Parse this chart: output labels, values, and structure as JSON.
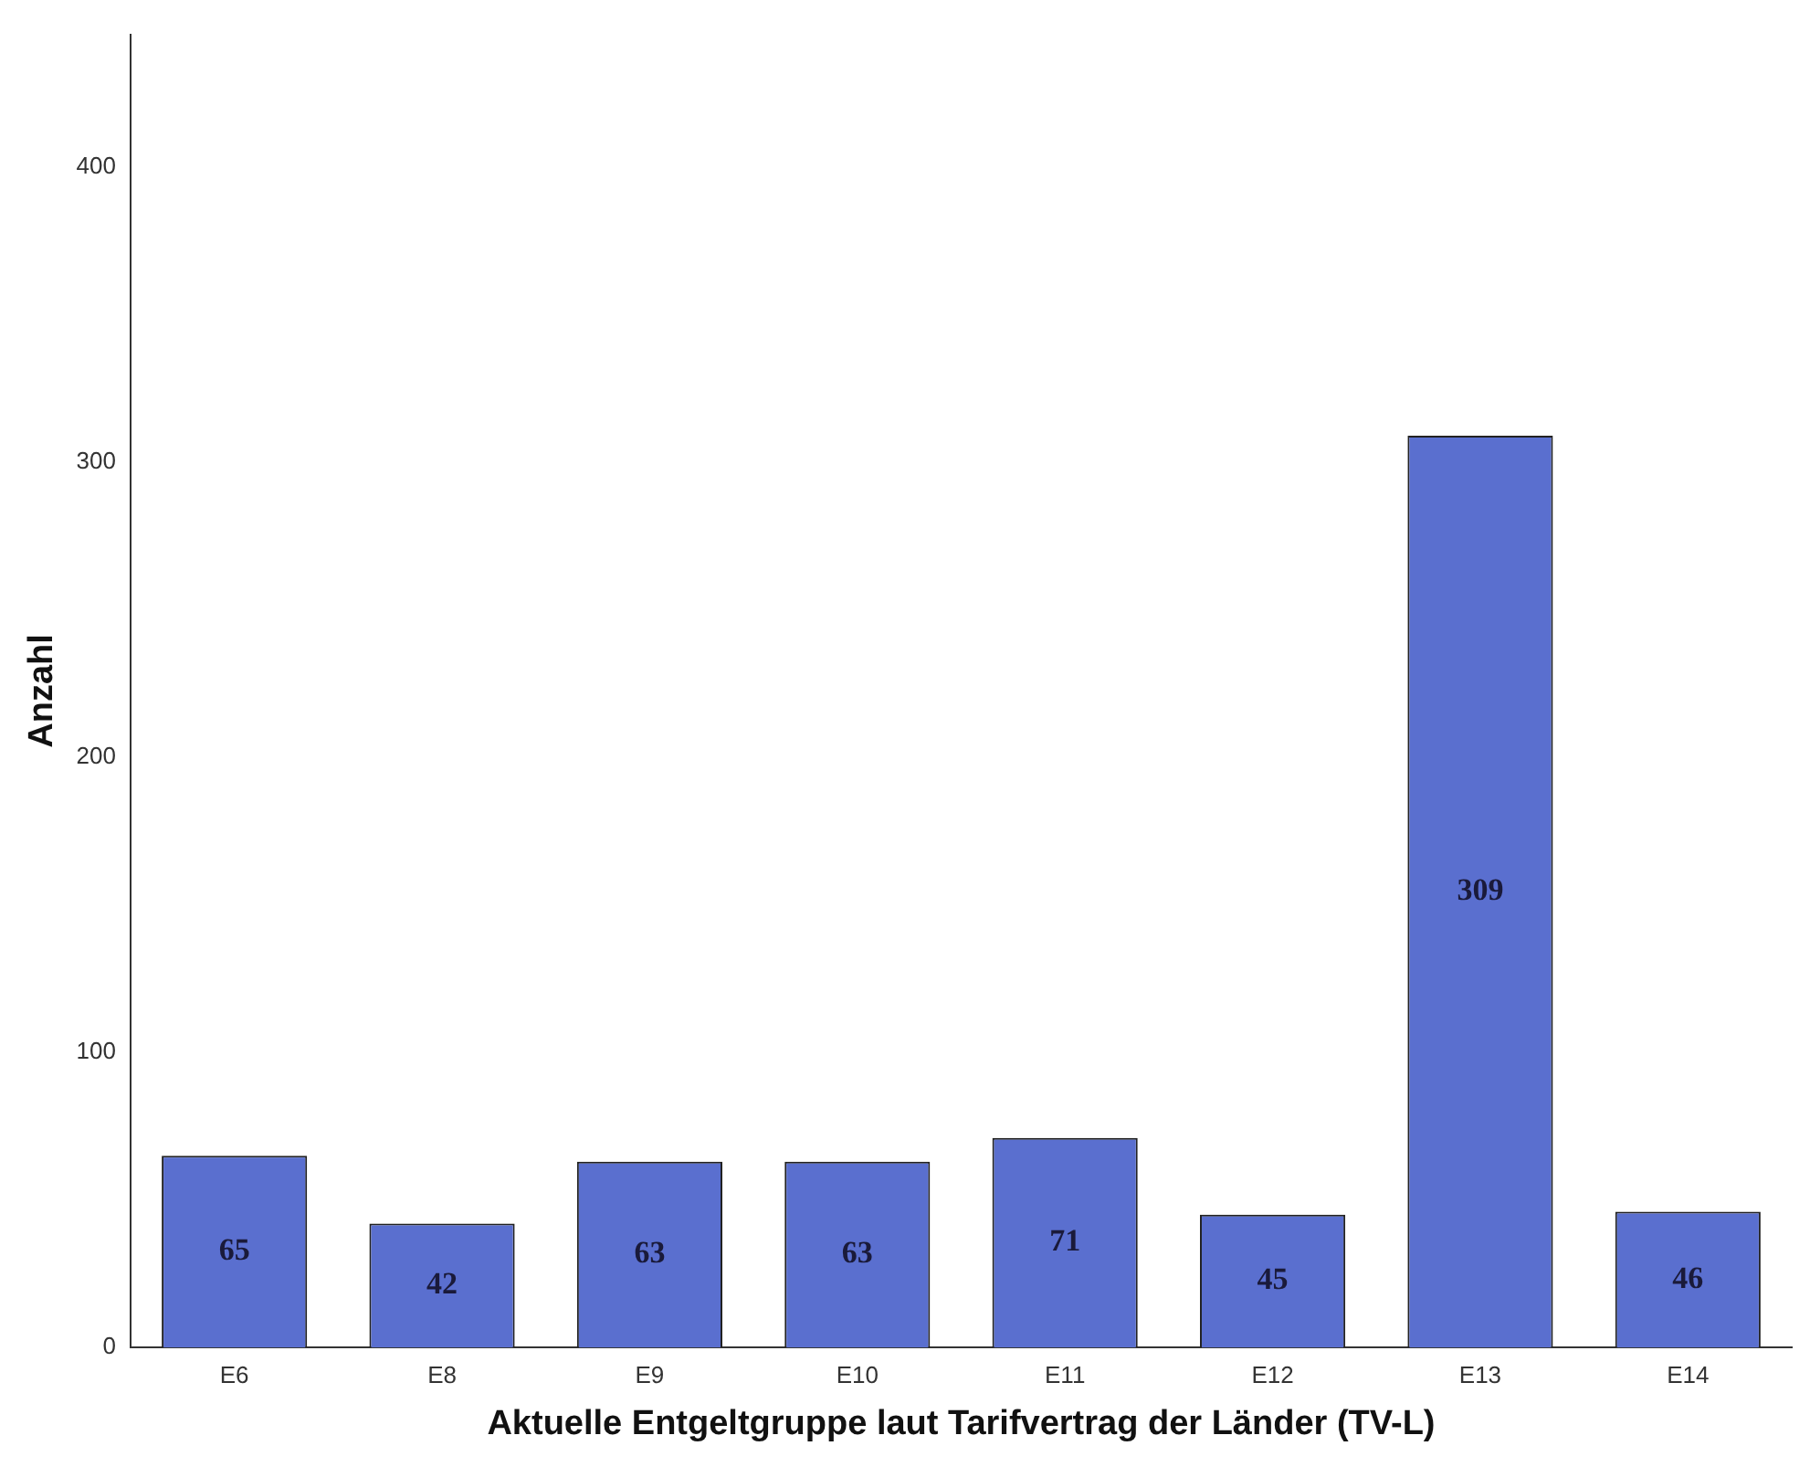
{
  "chart_data": {
    "type": "bar",
    "xlabel": "Aktuelle Entgeltgruppe laut Tarifvertrag der Länder (TV-L)",
    "ylabel": "Anzahl",
    "categories": [
      "E6",
      "E8",
      "E9",
      "E10",
      "E11",
      "E12",
      "E13",
      "E14"
    ],
    "values": [
      65,
      42,
      63,
      63,
      71,
      45,
      309,
      46
    ],
    "color": "#5a6fcf",
    "ylim": [
      0,
      445
    ],
    "yticks": [
      0,
      100,
      200,
      300,
      400
    ],
    "grid": false,
    "legend": false,
    "data_labels": true
  }
}
